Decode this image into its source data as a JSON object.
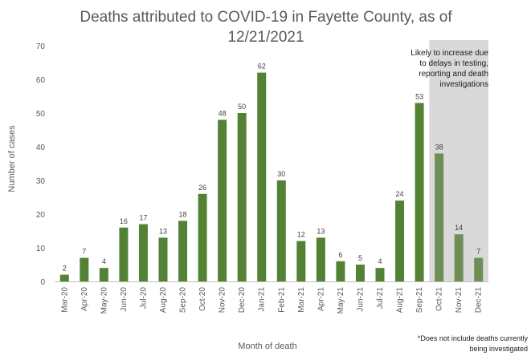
{
  "chart_data": {
    "type": "bar",
    "title_lines": [
      "Deaths attributed to COVID-19 in Fayette County, as of",
      "12/21/2021"
    ],
    "xlabel": "Month of death",
    "ylabel": "Number of cases",
    "ylim": [
      0,
      70
    ],
    "yticks": [
      0,
      10,
      20,
      30,
      40,
      50,
      60,
      70
    ],
    "grid": false,
    "categories": [
      "Mar-20",
      "Apr-20",
      "May-20",
      "Jun-20",
      "Jul-20",
      "Aug-20",
      "Sep-20",
      "Oct-20",
      "Nov-20",
      "Dec-20",
      "Jan-21",
      "Feb-21",
      "Mar-21",
      "Apr-21",
      "May-21",
      "Jun-21",
      "Jul-21",
      "Aug-21",
      "Sep-21",
      "Oct-21",
      "Nov-21",
      "Dec-21"
    ],
    "values": [
      2,
      7,
      4,
      16,
      17,
      13,
      18,
      26,
      48,
      50,
      62,
      30,
      12,
      13,
      6,
      5,
      4,
      24,
      53,
      38,
      14,
      7
    ],
    "bar_color": "#548235",
    "bar_color_shaded": "#6d8f55",
    "shaded_region": {
      "from_category": "Oct-21",
      "to_category": "Dec-21",
      "color": "#d9d9d9",
      "note_lines": [
        "Likely to increase due",
        "to delays in testing,",
        "reporting and death",
        "investigations"
      ]
    },
    "footnote_lines": [
      "*Does not include deaths currently",
      "being investigated"
    ]
  }
}
